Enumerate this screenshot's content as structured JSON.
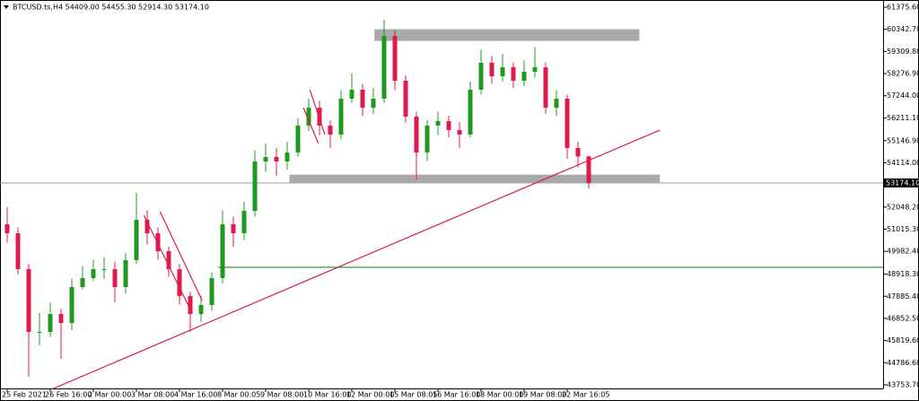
{
  "chart_data": {
    "type": "candlestick",
    "title": "BTCUSD.ts,H4  54409.00 54455.30 52914.30 53174.10",
    "bull_color": "#1f9a1f",
    "bear_color": "#e0194d",
    "open": [
      51245,
      50826,
      49152,
      46222,
      46222,
      47059,
      46640,
      48315,
      48733,
      49152,
      49152,
      48315,
      49571,
      51454,
      50826,
      49989,
      49152,
      47896,
      47059,
      47478,
      48733,
      51245,
      50826,
      51873,
      54175,
      54384,
      54175,
      54594,
      55850,
      56687,
      55850,
      55431,
      57105,
      57524,
      56687,
      57105,
      60036,
      57943,
      56268,
      54594,
      55850,
      56059,
      55640,
      55431,
      57524,
      58780,
      58152,
      58570,
      57943,
      58361,
      58570,
      56687,
      57105,
      54803,
      54409
    ],
    "high": [
      52050,
      51100,
      49400,
      47100,
      47600,
      47300,
      48700,
      49300,
      49600,
      49700,
      49500,
      49900,
      52710,
      51900,
      51100,
      50200,
      49400,
      48100,
      47900,
      49000,
      51900,
      51600,
      52300,
      54700,
      55000,
      54800,
      55100,
      56200,
      57100,
      57000,
      56100,
      57500,
      58300,
      57800,
      57600,
      60790,
      60300,
      58200,
      56500,
      56100,
      56500,
      56300,
      56000,
      57900,
      59400,
      59100,
      59200,
      58800,
      58900,
      59500,
      58800,
      57500,
      57300,
      55100,
      54455.3
    ],
    "low": [
      50400,
      48900,
      44130,
      45600,
      46000,
      44970,
      46300,
      48200,
      48600,
      48700,
      47600,
      48000,
      49400,
      50300,
      49600,
      48800,
      47500,
      46220,
      46700,
      47200,
      48500,
      50200,
      50500,
      51600,
      53700,
      53500,
      53800,
      54400,
      55600,
      55400,
      54800,
      55200,
      56900,
      56300,
      56400,
      56900,
      57500,
      56000,
      53340,
      54200,
      55400,
      55300,
      54800,
      55300,
      57300,
      57800,
      57900,
      57600,
      57700,
      58100,
      56400,
      56300,
      54300,
      53900,
      52914.3
    ],
    "close": [
      50826,
      49152,
      46222,
      46222,
      47059,
      46640,
      48315,
      48733,
      49152,
      49152,
      48315,
      49571,
      51454,
      50826,
      49989,
      49152,
      47896,
      47059,
      47478,
      48733,
      51245,
      50826,
      51873,
      54175,
      54384,
      54175,
      54594,
      55850,
      56687,
      55850,
      55431,
      57105,
      57524,
      56687,
      57105,
      60036,
      57943,
      56268,
      54594,
      55850,
      56059,
      55640,
      55431,
      57524,
      58780,
      58152,
      58570,
      57943,
      58361,
      58570,
      56687,
      57105,
      54803,
      54409,
      53174.1
    ],
    "current_price": {
      "value": 53174.1,
      "label": "53174.10"
    },
    "ylim": [
      43586,
      61710
    ],
    "yticks": [
      {
        "value": 61375.6,
        "label": "61375.60"
      },
      {
        "value": 60342.7,
        "label": "60342.70"
      },
      {
        "value": 59309.8,
        "label": "59309.80"
      },
      {
        "value": 58276.9,
        "label": "58276.90"
      },
      {
        "value": 57244,
        "label": "57244.00"
      },
      {
        "value": 56211.1,
        "label": "56211.10"
      },
      {
        "value": 55146.9,
        "label": "55146.90"
      },
      {
        "value": 54114,
        "label": "54114.00"
      },
      {
        "value": 52048.2,
        "label": "52048.20"
      },
      {
        "value": 51015.3,
        "label": "51015.30"
      },
      {
        "value": 49982.4,
        "label": "49982.40"
      },
      {
        "value": 48918.3,
        "label": "48918.30"
      },
      {
        "value": 47885.4,
        "label": "47885.40"
      },
      {
        "value": 46852.5,
        "label": "46852.50"
      },
      {
        "value": 45819.6,
        "label": "45819.60"
      },
      {
        "value": 44786.6,
        "label": "44786.60"
      },
      {
        "value": 43753.7,
        "label": "43753.70"
      }
    ],
    "xticks": [
      {
        "value": 0,
        "label": "25 Feb 2021"
      },
      {
        "value": 4,
        "label": "26 Feb 16:00"
      },
      {
        "value": 8,
        "label": "2 Mar 00:00"
      },
      {
        "value": 12,
        "label": "3 Mar 08:00"
      },
      {
        "value": 16,
        "label": "4 Mar 16:00"
      },
      {
        "value": 20,
        "label": "8 Mar 00:05"
      },
      {
        "value": 24,
        "label": "9 Mar 08:00"
      },
      {
        "value": 28,
        "label": "10 Mar 16:00"
      },
      {
        "value": 32,
        "label": "12 Mar 00:00"
      },
      {
        "value": 36,
        "label": "15 Mar 08:05"
      },
      {
        "value": 40,
        "label": "16 Mar 16:00"
      },
      {
        "value": 44,
        "label": "18 Mar 00:00"
      },
      {
        "value": 48,
        "label": "19 Mar 08:00"
      },
      {
        "value": 52,
        "label": "22 Mar 16:05"
      }
    ],
    "rectangles": [
      {
        "x": [
          34.1,
          58.7
        ],
        "y": [
          59800,
          60350
        ],
        "color": "#a9a9a9"
      },
      {
        "x": [
          26.2,
          60.6
        ],
        "y": [
          53200,
          53560
        ],
        "color": "#a9a9a9"
      }
    ],
    "lines": [
      {
        "x": [
          4.3,
          60.6
        ],
        "y": [
          43585,
          55640
        ],
        "color": "#e0194d"
      },
      {
        "x": [
          19.6,
          84.7
        ],
        "y": [
          49240,
          49240
        ],
        "color": "#1f8c1f"
      },
      {
        "x": [
          12.7,
          16.8
        ],
        "y": [
          51663,
          47477
        ],
        "color": "#e0194d"
      },
      {
        "x": [
          14.2,
          18.1
        ],
        "y": [
          51830,
          47687
        ],
        "color": "#e0194d"
      },
      {
        "x": [
          28.1,
          29.5
        ],
        "y": [
          57524,
          55431
        ],
        "color": "#e0194d"
      },
      {
        "x": [
          27.5,
          28.9
        ],
        "y": [
          56687,
          55012
        ],
        "color": "#e0194d"
      }
    ]
  }
}
